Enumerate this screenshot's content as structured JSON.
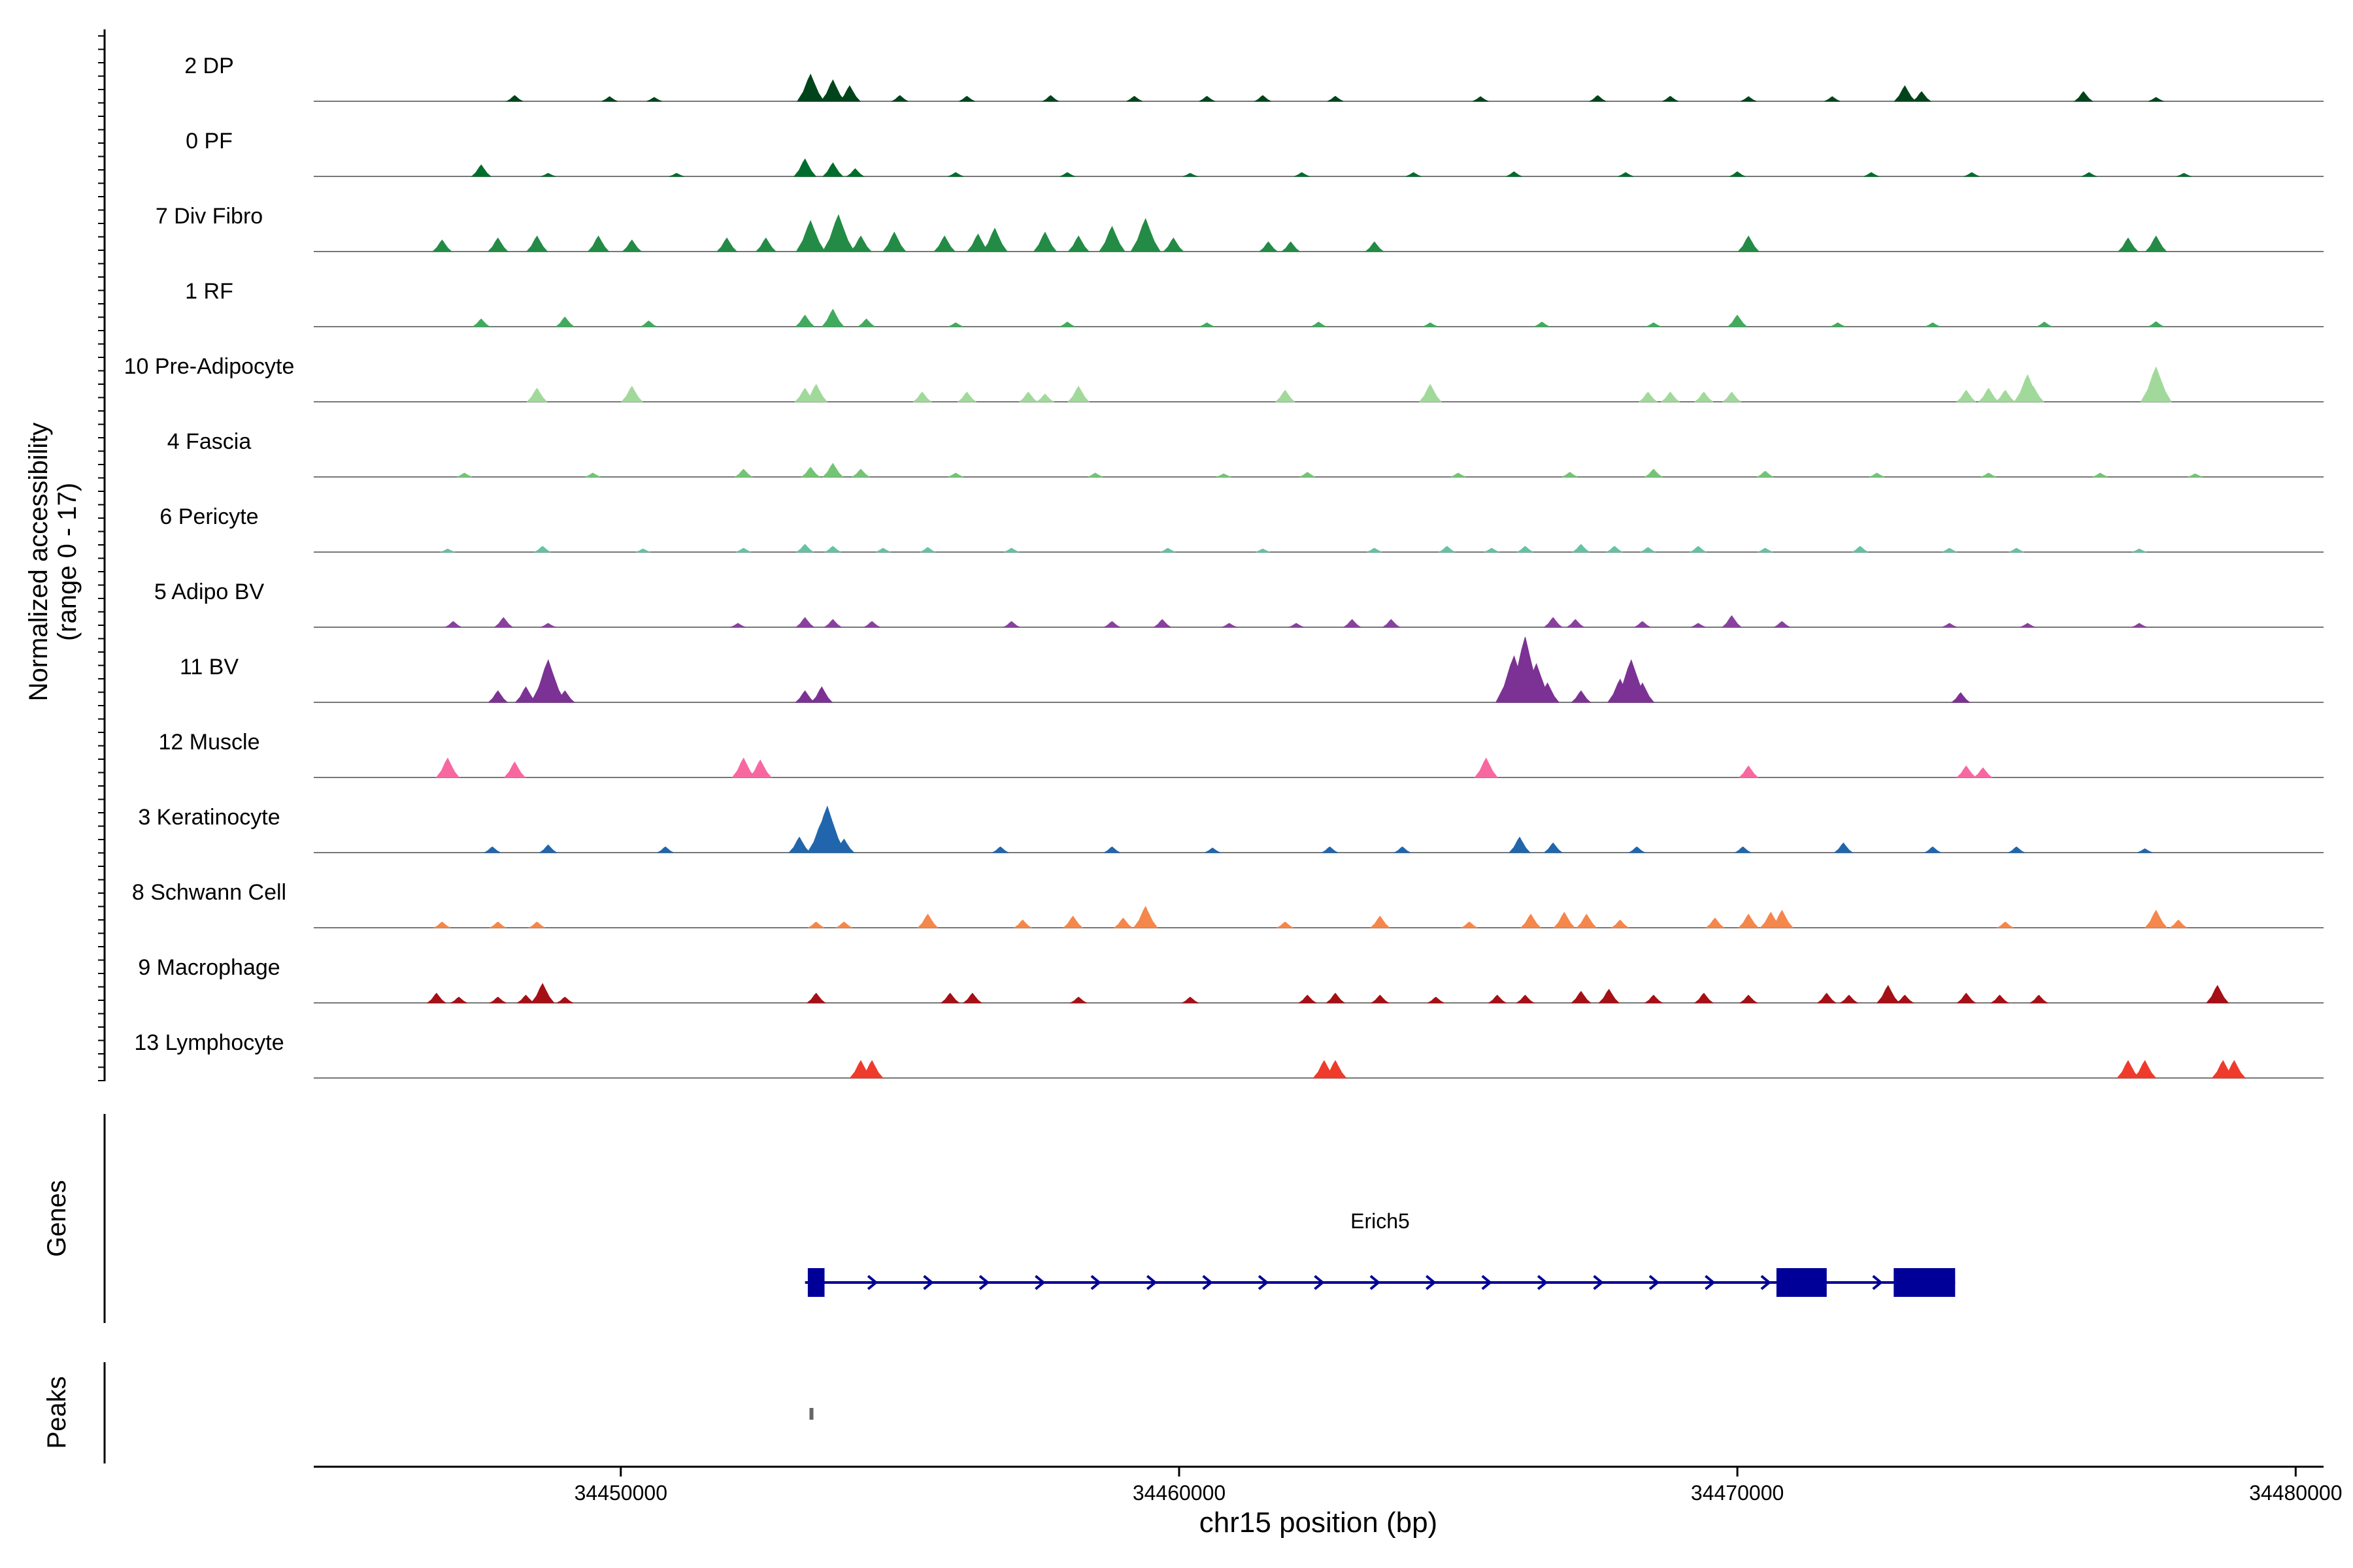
{
  "chart_data": {
    "type": "area",
    "subtype": "genome-coverage-tracks",
    "y_axis_title": [
      "Normalized accessibility",
      "(range 0 - 17)"
    ],
    "y_range": [
      0,
      17
    ],
    "x_axis_title": "chr15 position (bp)",
    "xlim": [
      34444500,
      34480500
    ],
    "x_ticks": [
      34450000,
      34460000,
      34470000,
      34480000
    ],
    "x_tick_labels": [
      "34450000",
      "34460000",
      "34470000",
      "34480000"
    ],
    "grid": false,
    "legend": "none",
    "tracks": [
      {
        "name": "2 DP",
        "color": "#00441b",
        "peaks": [
          [
            34448100,
            1.5
          ],
          [
            34449800,
            1.2
          ],
          [
            34450600,
            1.0
          ],
          [
            34453400,
            7.0
          ],
          [
            34453800,
            5.5
          ],
          [
            34454100,
            4.0
          ],
          [
            34455000,
            1.5
          ],
          [
            34456200,
            1.3
          ],
          [
            34457700,
            1.5
          ],
          [
            34459200,
            1.3
          ],
          [
            34460500,
            1.3
          ],
          [
            34461500,
            1.5
          ],
          [
            34462800,
            1.3
          ],
          [
            34465400,
            1.2
          ],
          [
            34467500,
            1.5
          ],
          [
            34468800,
            1.3
          ],
          [
            34470200,
            1.2
          ],
          [
            34471700,
            1.2
          ],
          [
            34473000,
            4.0
          ],
          [
            34473300,
            2.5
          ],
          [
            34476200,
            2.5
          ],
          [
            34477500,
            1.0
          ]
        ]
      },
      {
        "name": "0 PF",
        "color": "#006d2c",
        "peaks": [
          [
            34447500,
            3.0
          ],
          [
            34448700,
            0.8
          ],
          [
            34451000,
            0.8
          ],
          [
            34453300,
            4.5
          ],
          [
            34453800,
            3.5
          ],
          [
            34454200,
            2.0
          ],
          [
            34456000,
            1.0
          ],
          [
            34458000,
            1.0
          ],
          [
            34460200,
            0.8
          ],
          [
            34462200,
            1.0
          ],
          [
            34464200,
            1.0
          ],
          [
            34466000,
            1.2
          ],
          [
            34468000,
            1.0
          ],
          [
            34470000,
            1.2
          ],
          [
            34472400,
            1.0
          ],
          [
            34474200,
            1.0
          ],
          [
            34476300,
            1.0
          ],
          [
            34478000,
            0.8
          ]
        ]
      },
      {
        "name": "7 Div Fibro",
        "color": "#238b45",
        "peaks": [
          [
            34446800,
            3.0
          ],
          [
            34447800,
            3.5
          ],
          [
            34448500,
            4.0
          ],
          [
            34449600,
            4.0
          ],
          [
            34450200,
            3.0
          ],
          [
            34451900,
            3.5
          ],
          [
            34452600,
            3.5
          ],
          [
            34453400,
            8.0
          ],
          [
            34453900,
            9.5
          ],
          [
            34454300,
            4.0
          ],
          [
            34454900,
            5.0
          ],
          [
            34455800,
            4.0
          ],
          [
            34456400,
            4.5
          ],
          [
            34456700,
            6.0
          ],
          [
            34457600,
            5.0
          ],
          [
            34458200,
            4.0
          ],
          [
            34458800,
            6.5
          ],
          [
            34459400,
            8.5
          ],
          [
            34459900,
            3.5
          ],
          [
            34461600,
            2.5
          ],
          [
            34462000,
            2.5
          ],
          [
            34463500,
            2.5
          ],
          [
            34470200,
            4.0
          ],
          [
            34477000,
            3.5
          ],
          [
            34477500,
            4.0
          ]
        ]
      },
      {
        "name": "1 RF",
        "color": "#41ab5d",
        "peaks": [
          [
            34447500,
            2.0
          ],
          [
            34449000,
            2.5
          ],
          [
            34450500,
            1.5
          ],
          [
            34453300,
            3.0
          ],
          [
            34453800,
            4.5
          ],
          [
            34454400,
            2.0
          ],
          [
            34456000,
            1.0
          ],
          [
            34458000,
            1.2
          ],
          [
            34460500,
            1.0
          ],
          [
            34462500,
            1.2
          ],
          [
            34464500,
            1.0
          ],
          [
            34466500,
            1.2
          ],
          [
            34468500,
            1.0
          ],
          [
            34470000,
            3.0
          ],
          [
            34471800,
            1.0
          ],
          [
            34473500,
            1.0
          ],
          [
            34475500,
            1.2
          ],
          [
            34477500,
            1.3
          ]
        ]
      },
      {
        "name": "10 Pre-Adipocyte",
        "color": "#a1d99b",
        "peaks": [
          [
            34448500,
            3.5
          ],
          [
            34450200,
            4.0
          ],
          [
            34453300,
            3.5
          ],
          [
            34453500,
            4.5
          ],
          [
            34455400,
            2.5
          ],
          [
            34456200,
            2.5
          ],
          [
            34457300,
            2.5
          ],
          [
            34457600,
            2.0
          ],
          [
            34458200,
            4.0
          ],
          [
            34461900,
            3.0
          ],
          [
            34464500,
            4.5
          ],
          [
            34468400,
            2.5
          ],
          [
            34468800,
            2.5
          ],
          [
            34469400,
            2.5
          ],
          [
            34469900,
            2.5
          ],
          [
            34474100,
            3.0
          ],
          [
            34474500,
            3.5
          ],
          [
            34474800,
            3.0
          ],
          [
            34475200,
            7.0
          ],
          [
            34475300,
            4.0
          ],
          [
            34477500,
            9.0
          ]
        ]
      },
      {
        "name": "4 Fascia",
        "color": "#74c476",
        "peaks": [
          [
            34447200,
            1.0
          ],
          [
            34449500,
            1.0
          ],
          [
            34452200,
            2.0
          ],
          [
            34453400,
            2.5
          ],
          [
            34453800,
            3.5
          ],
          [
            34454300,
            2.0
          ],
          [
            34456000,
            1.0
          ],
          [
            34458500,
            1.0
          ],
          [
            34460800,
            0.8
          ],
          [
            34462300,
            1.2
          ],
          [
            34465000,
            1.0
          ],
          [
            34467000,
            1.2
          ],
          [
            34468500,
            2.0
          ],
          [
            34470500,
            1.5
          ],
          [
            34472500,
            1.0
          ],
          [
            34474500,
            1.0
          ],
          [
            34476500,
            1.0
          ],
          [
            34478200,
            0.8
          ]
        ]
      },
      {
        "name": "6 Pericyte",
        "color": "#66c2a4",
        "peaks": [
          [
            34446900,
            0.8
          ],
          [
            34448600,
            1.5
          ],
          [
            34450400,
            0.8
          ],
          [
            34452200,
            1.0
          ],
          [
            34453300,
            2.0
          ],
          [
            34453800,
            1.5
          ],
          [
            34454700,
            1.0
          ],
          [
            34455500,
            1.2
          ],
          [
            34457000,
            1.0
          ],
          [
            34459800,
            1.0
          ],
          [
            34461500,
            0.8
          ],
          [
            34463500,
            1.0
          ],
          [
            34464800,
            1.5
          ],
          [
            34465600,
            1.0
          ],
          [
            34466200,
            1.5
          ],
          [
            34467200,
            2.0
          ],
          [
            34467800,
            1.5
          ],
          [
            34468400,
            1.2
          ],
          [
            34469300,
            1.5
          ],
          [
            34470500,
            1.0
          ],
          [
            34472200,
            1.5
          ],
          [
            34473800,
            1.0
          ],
          [
            34475000,
            1.0
          ],
          [
            34477200,
            0.8
          ]
        ]
      },
      {
        "name": "5 Adipo BV",
        "color": "#88419d",
        "peaks": [
          [
            34447000,
            1.5
          ],
          [
            34447900,
            2.5
          ],
          [
            34448700,
            1.0
          ],
          [
            34452100,
            1.0
          ],
          [
            34453300,
            2.5
          ],
          [
            34453800,
            2.0
          ],
          [
            34454500,
            1.5
          ],
          [
            34457000,
            1.5
          ],
          [
            34458800,
            1.5
          ],
          [
            34459700,
            2.0
          ],
          [
            34460900,
            1.0
          ],
          [
            34462100,
            1.0
          ],
          [
            34463100,
            2.0
          ],
          [
            34463800,
            2.0
          ],
          [
            34466700,
            2.5
          ],
          [
            34467100,
            2.0
          ],
          [
            34468300,
            1.5
          ],
          [
            34469300,
            1.0
          ],
          [
            34469900,
            3.0
          ],
          [
            34470800,
            1.5
          ],
          [
            34473800,
            1.0
          ],
          [
            34475200,
            1.0
          ],
          [
            34477200,
            1.0
          ]
        ]
      },
      {
        "name": "11 BV",
        "color": "#7b3294",
        "peaks": [
          [
            34447800,
            3.0
          ],
          [
            34448300,
            4.0
          ],
          [
            34448700,
            11.0
          ],
          [
            34448600,
            6.0
          ],
          [
            34449000,
            3.0
          ],
          [
            34453300,
            3.0
          ],
          [
            34453600,
            4.0
          ],
          [
            34466000,
            12.0
          ],
          [
            34466200,
            17.0
          ],
          [
            34466400,
            10.0
          ],
          [
            34466600,
            5.0
          ],
          [
            34467200,
            3.0
          ],
          [
            34467900,
            6.0
          ],
          [
            34468100,
            11.0
          ],
          [
            34468300,
            5.0
          ],
          [
            34474000,
            2.5
          ]
        ]
      },
      {
        "name": "12 Muscle",
        "color": "#f768a1",
        "peaks": [
          [
            34446900,
            5.0
          ],
          [
            34448100,
            4.0
          ],
          [
            34452200,
            5.0
          ],
          [
            34452500,
            4.5
          ],
          [
            34465500,
            5.0
          ],
          [
            34470200,
            3.0
          ],
          [
            34474100,
            3.0
          ],
          [
            34474400,
            2.5
          ]
        ]
      },
      {
        "name": "3 Keratinocyte",
        "color": "#2166ac",
        "peaks": [
          [
            34447700,
            1.5
          ],
          [
            34448700,
            2.0
          ],
          [
            34450800,
            1.5
          ],
          [
            34453200,
            4.0
          ],
          [
            34453600,
            8.0
          ],
          [
            34453700,
            12.0
          ],
          [
            34454000,
            3.5
          ],
          [
            34456800,
            1.5
          ],
          [
            34458800,
            1.5
          ],
          [
            34460600,
            1.2
          ],
          [
            34462700,
            1.5
          ],
          [
            34464000,
            1.5
          ],
          [
            34466100,
            4.0
          ],
          [
            34466700,
            2.5
          ],
          [
            34468200,
            1.5
          ],
          [
            34470100,
            1.5
          ],
          [
            34471900,
            2.5
          ],
          [
            34473500,
            1.5
          ],
          [
            34475000,
            1.5
          ],
          [
            34477300,
            1.0
          ]
        ]
      },
      {
        "name": "8 Schwann Cell",
        "color": "#f4874b",
        "peaks": [
          [
            34446800,
            1.5
          ],
          [
            34447800,
            1.5
          ],
          [
            34448500,
            1.5
          ],
          [
            34453500,
            1.5
          ],
          [
            34454000,
            1.5
          ],
          [
            34455500,
            3.5
          ],
          [
            34457200,
            2.0
          ],
          [
            34458100,
            3.0
          ],
          [
            34459000,
            2.5
          ],
          [
            34459400,
            5.5
          ],
          [
            34461900,
            1.5
          ],
          [
            34463600,
            3.0
          ],
          [
            34465200,
            1.5
          ],
          [
            34466300,
            3.5
          ],
          [
            34466900,
            4.0
          ],
          [
            34467300,
            3.5
          ],
          [
            34467900,
            2.0
          ],
          [
            34469600,
            2.5
          ],
          [
            34470200,
            3.5
          ],
          [
            34470600,
            4.0
          ],
          [
            34470800,
            4.5
          ],
          [
            34474800,
            1.5
          ],
          [
            34477500,
            4.5
          ],
          [
            34477900,
            2.0
          ]
        ]
      },
      {
        "name": "9 Macrophage",
        "color": "#a50f15",
        "peaks": [
          [
            34446700,
            2.5
          ],
          [
            34447100,
            1.5
          ],
          [
            34447800,
            1.5
          ],
          [
            34448300,
            2.0
          ],
          [
            34448600,
            5.0
          ],
          [
            34449000,
            1.5
          ],
          [
            34453500,
            2.5
          ],
          [
            34455900,
            2.5
          ],
          [
            34456300,
            2.5
          ],
          [
            34458200,
            1.5
          ],
          [
            34460200,
            1.5
          ],
          [
            34462300,
            2.0
          ],
          [
            34462800,
            2.5
          ],
          [
            34463600,
            2.0
          ],
          [
            34464600,
            1.5
          ],
          [
            34465700,
            2.0
          ],
          [
            34466200,
            2.0
          ],
          [
            34467200,
            3.0
          ],
          [
            34467700,
            3.5
          ],
          [
            34468500,
            2.0
          ],
          [
            34469400,
            2.5
          ],
          [
            34470200,
            2.0
          ],
          [
            34471600,
            2.5
          ],
          [
            34472000,
            2.0
          ],
          [
            34472700,
            4.5
          ],
          [
            34473000,
            2.0
          ],
          [
            34474100,
            2.5
          ],
          [
            34474700,
            2.0
          ],
          [
            34475400,
            2.0
          ],
          [
            34478600,
            4.5
          ]
        ]
      },
      {
        "name": "13 Lymphocyte",
        "color": "#ef3b2c",
        "peaks": [
          [
            34454300,
            4.5
          ],
          [
            34454500,
            4.5
          ],
          [
            34462600,
            4.5
          ],
          [
            34462800,
            4.5
          ],
          [
            34477000,
            4.5
          ],
          [
            34477300,
            4.5
          ],
          [
            34478700,
            4.5
          ],
          [
            34478900,
            4.5
          ]
        ]
      }
    ],
    "genes_track": {
      "label": "Genes",
      "genes": [
        {
          "name": "Erich5",
          "start": 34453300,
          "end": 34473900,
          "strand": "+",
          "color": "#000099",
          "exons": [
            [
              34453350,
              34453650
            ],
            [
              34470700,
              34471600
            ],
            [
              34472800,
              34473900
            ]
          ]
        }
      ]
    },
    "peaks_track": {
      "label": "Peaks",
      "regions": [
        [
          34453380,
          34453450
        ]
      ]
    }
  }
}
